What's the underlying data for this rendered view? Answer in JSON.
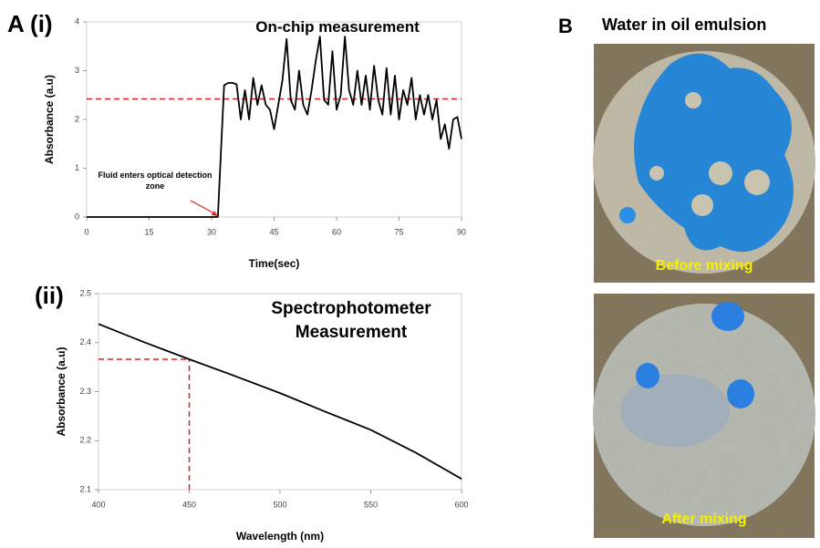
{
  "panel_labels": {
    "a": "A (i)",
    "a2": "(ii)",
    "b": "B"
  },
  "panel_b_title": "Water in oil emulsion",
  "photos": [
    {
      "caption": "Before mixing"
    },
    {
      "caption": "After mixing"
    }
  ],
  "chart_data": [
    {
      "type": "line",
      "title": "On-chip measurement",
      "x_label": "Time(sec)",
      "y_label": "Absorbance (a.u)",
      "x": [
        0,
        31.5,
        33,
        34,
        35,
        36,
        37,
        38,
        39,
        40,
        41,
        42,
        43,
        44,
        45,
        46,
        47,
        48,
        49,
        50,
        51,
        52,
        53,
        54,
        55,
        56,
        57,
        58,
        59,
        60,
        61,
        62,
        63,
        64,
        65,
        66,
        67,
        68,
        69,
        70,
        71,
        72,
        73,
        74,
        75,
        76,
        77,
        78,
        79,
        80,
        81,
        82,
        83,
        84,
        85,
        86,
        87,
        88,
        89,
        90
      ],
      "values": [
        0,
        0,
        2.7,
        2.75,
        2.75,
        2.72,
        2.0,
        2.6,
        2.0,
        2.85,
        2.3,
        2.7,
        2.3,
        2.2,
        1.8,
        2.3,
        2.8,
        3.65,
        2.4,
        2.2,
        3.0,
        2.3,
        2.1,
        2.6,
        3.2,
        3.7,
        2.4,
        2.3,
        3.4,
        2.2,
        2.5,
        3.7,
        2.6,
        2.3,
        3.0,
        2.3,
        2.9,
        2.2,
        3.1,
        2.4,
        2.1,
        3.05,
        2.1,
        2.9,
        2.0,
        2.6,
        2.3,
        2.85,
        2.0,
        2.5,
        2.1,
        2.5,
        2.0,
        2.4,
        1.6,
        1.9,
        1.4,
        2.0,
        2.05,
        1.6
      ],
      "color": "#000000",
      "xlim": [
        0,
        90
      ],
      "xticks": [
        0,
        15,
        30,
        45,
        60,
        75,
        90
      ],
      "ylim": [
        0,
        4
      ],
      "yticks": [
        0,
        1,
        2,
        3,
        4
      ],
      "reference_line": 2.42,
      "reference_color": "#e02020",
      "annotation": {
        "text": "Fluid enters optical detection zone",
        "x": 31.5,
        "y": 0
      }
    },
    {
      "type": "line",
      "title": "Spectrophotometer Measurement",
      "x_label": "Wavelength (nm)",
      "y_label": "Absorbance (a.u)",
      "x": [
        400,
        425,
        450,
        475,
        500,
        525,
        550,
        575,
        600
      ],
      "values": [
        2.438,
        2.401,
        2.366,
        2.332,
        2.297,
        2.259,
        2.222,
        2.175,
        2.122
      ],
      "color": "#000000",
      "xlim": [
        400,
        600
      ],
      "xticks": [
        400,
        450,
        500,
        550,
        600
      ],
      "ylim": [
        2.1,
        2.5
      ],
      "yticks": [
        2.1,
        2.2,
        2.3,
        2.4,
        2.5
      ],
      "reference_point": {
        "x": 450,
        "y": 2.366
      },
      "reference_color": "#e02020"
    }
  ]
}
